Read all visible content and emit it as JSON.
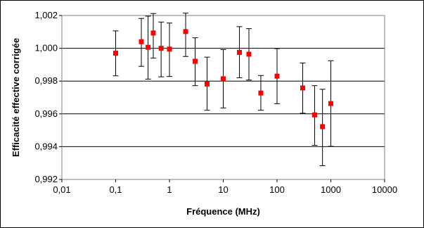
{
  "chart_data": {
    "type": "scatter",
    "title": "",
    "xlabel": "Fréquence (MHz)",
    "ylabel": "Efficacité effective corrigée",
    "x_scale": "log",
    "xlim": [
      0.01,
      10000
    ],
    "ylim": [
      0.992,
      1.002
    ],
    "x_ticks": [
      0.01,
      0.1,
      1,
      10,
      100,
      1000,
      10000
    ],
    "x_tick_labels": [
      "0,01",
      "0,1",
      "1",
      "10",
      "100",
      "1000",
      "10000"
    ],
    "y_ticks": [
      0.992,
      0.994,
      0.996,
      0.998,
      1.0,
      1.002
    ],
    "y_tick_labels": [
      "0,992",
      "0,994",
      "0,996",
      "0,998",
      "1,000",
      "1,002"
    ],
    "grid": "horizontal",
    "legend": "none",
    "marker_color": "#ff0000",
    "error_bar_color": "#000000",
    "series": [
      {
        "points": [
          {
            "x": 0.1,
            "y": 0.9997,
            "err_low": 0.99832,
            "err_high": 1.00106
          },
          {
            "x": 0.3,
            "y": 1.0004,
            "err_low": 0.9989,
            "err_high": 1.00182
          },
          {
            "x": 0.4,
            "y": 1.00006,
            "err_low": 0.99812,
            "err_high": 1.00196
          },
          {
            "x": 0.5,
            "y": 1.00093,
            "err_low": 0.9994,
            "err_high": 1.00212
          },
          {
            "x": 0.7,
            "y": 1.0,
            "err_low": 0.99826,
            "err_high": 1.0016
          },
          {
            "x": 1,
            "y": 0.99995,
            "err_low": 0.99828,
            "err_high": 1.00154
          },
          {
            "x": 2,
            "y": 1.00102,
            "err_low": 0.9995,
            "err_high": 1.00214
          },
          {
            "x": 3,
            "y": 0.99921,
            "err_low": 0.99772,
            "err_high": 1.00064
          },
          {
            "x": 5,
            "y": 0.99782,
            "err_low": 0.99622,
            "err_high": 0.99946
          },
          {
            "x": 10,
            "y": 0.99814,
            "err_low": 0.99636,
            "err_high": 0.99992
          },
          {
            "x": 20,
            "y": 0.99975,
            "err_low": 0.9982,
            "err_high": 1.00132
          },
          {
            "x": 30,
            "y": 0.99964,
            "err_low": 0.99806,
            "err_high": 1.0012
          },
          {
            "x": 50,
            "y": 0.99727,
            "err_low": 0.99622,
            "err_high": 0.99834
          },
          {
            "x": 100,
            "y": 0.9983,
            "err_low": 0.99662,
            "err_high": 0.99998
          },
          {
            "x": 300,
            "y": 0.99758,
            "err_low": 0.99604,
            "err_high": 0.9991
          },
          {
            "x": 500,
            "y": 0.99594,
            "err_low": 0.99408,
            "err_high": 0.99772
          },
          {
            "x": 700,
            "y": 0.99522,
            "err_low": 0.99284,
            "err_high": 0.9975
          },
          {
            "x": 1000,
            "y": 0.99663,
            "err_low": 0.99402,
            "err_high": 0.99924
          }
        ]
      }
    ]
  }
}
